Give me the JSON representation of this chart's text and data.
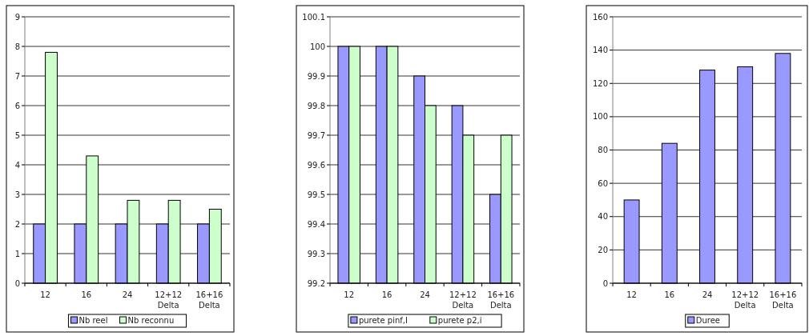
{
  "chart_data": [
    {
      "type": "bar",
      "categories": [
        "12",
        "16",
        "24",
        "12+12 Delta",
        "16+16 Delta"
      ],
      "series": [
        {
          "name": "Nb reel",
          "color": "#9999ff",
          "values": [
            2,
            2,
            2,
            2,
            2
          ]
        },
        {
          "name": "Nb reconnu",
          "color": "#ccffcc",
          "values": [
            7.8,
            4.3,
            2.8,
            2.8,
            2.5
          ]
        }
      ],
      "ylim": [
        0,
        9
      ],
      "yticks": [
        0,
        1,
        2,
        3,
        4,
        5,
        6,
        7,
        8,
        9
      ],
      "grid": "y",
      "legend": "bottom"
    },
    {
      "type": "bar",
      "categories": [
        "12",
        "16",
        "24",
        "12+12 Delta",
        "16+16 Delta"
      ],
      "series": [
        {
          "name": "purete pinf,I",
          "color": "#9999ff",
          "values": [
            100,
            100,
            99.9,
            99.8,
            99.5
          ]
        },
        {
          "name": "purete p2,i",
          "color": "#ccffcc",
          "values": [
            100,
            100,
            99.8,
            99.7,
            99.7
          ]
        }
      ],
      "ylim": [
        99.2,
        100.1
      ],
      "yticks": [
        99.2,
        99.3,
        99.4,
        99.5,
        99.6,
        99.7,
        99.8,
        99.9,
        100,
        100.1
      ],
      "grid": "y",
      "legend": "bottom"
    },
    {
      "type": "bar",
      "categories": [
        "12",
        "16",
        "24",
        "12+12 Delta",
        "16+16 Delta"
      ],
      "series": [
        {
          "name": "Duree",
          "color": "#9999ff",
          "values": [
            50,
            84,
            128,
            130,
            138
          ]
        }
      ],
      "ylim": [
        0,
        160
      ],
      "yticks": [
        0,
        20,
        40,
        60,
        80,
        100,
        120,
        140,
        160
      ],
      "grid": "y",
      "legend": "bottom"
    }
  ]
}
